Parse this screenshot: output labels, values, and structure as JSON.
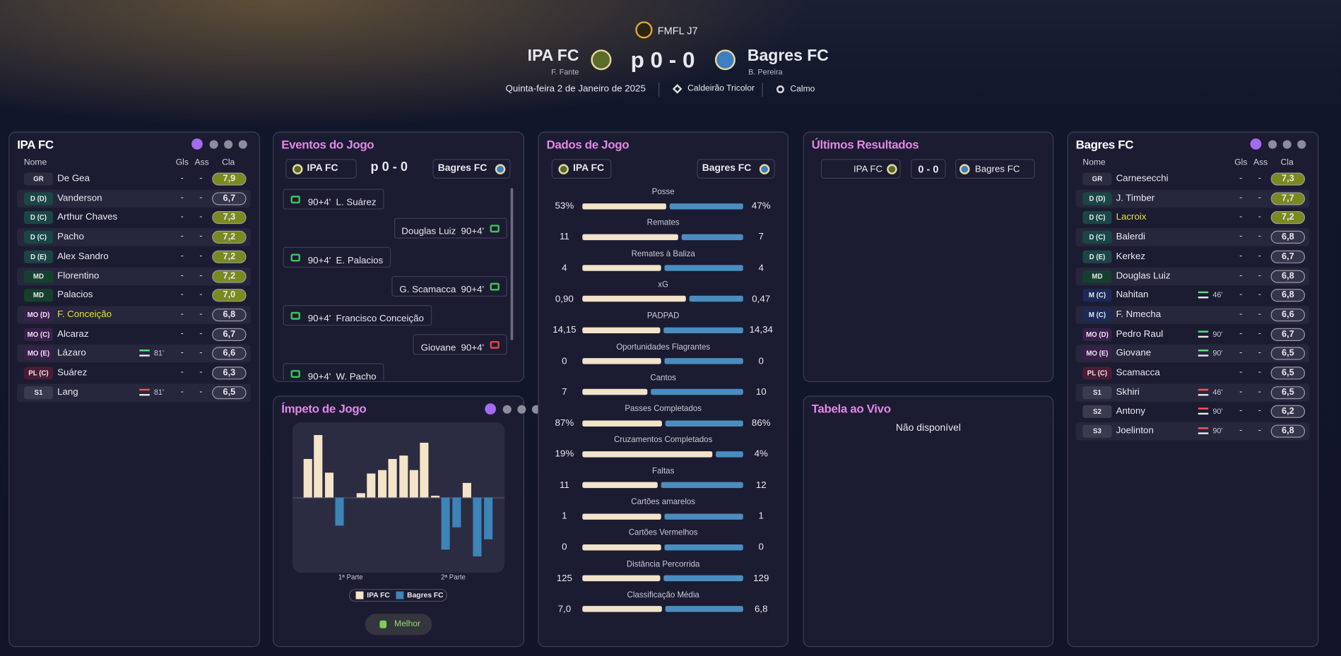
{
  "header": {
    "competition": "FMFL J7",
    "home": {
      "name": "IPA FC",
      "manager": "F. Fante"
    },
    "score": "p 0 - 0",
    "away": {
      "name": "Bagres FC",
      "manager": "B. Pereira"
    },
    "date": "Quinta-feira 2 de Janeiro de 2025",
    "stadium": "Caldeirão Tricolor",
    "weather": "Calmo"
  },
  "home_panel": {
    "title": "IPA FC",
    "columns": [
      "Nome",
      "Gls",
      "Ass",
      "Cla"
    ],
    "players": [
      {
        "pos": "GR",
        "pos_bg": "#2b2c40",
        "name": "De Gea",
        "goals": "-",
        "assists": "-",
        "rating": "7,9",
        "rating_color": "#7a8a1e"
      },
      {
        "pos": "D (D)",
        "pos_bg": "#1b4646",
        "name": "Vanderson",
        "goals": "-",
        "assists": "-",
        "rating": "6,7",
        "rating_color": "#34354a"
      },
      {
        "pos": "D (C)",
        "pos_bg": "#1b4646",
        "name": "Arthur Chaves",
        "goals": "-",
        "assists": "-",
        "rating": "7,3",
        "rating_color": "#7a8a1e"
      },
      {
        "pos": "D (C)",
        "pos_bg": "#1b4646",
        "name": "Pacho",
        "goals": "-",
        "assists": "-",
        "rating": "7,2",
        "rating_color": "#7a8a1e"
      },
      {
        "pos": "D (E)",
        "pos_bg": "#1b4646",
        "name": "Alex Sandro",
        "goals": "-",
        "assists": "-",
        "rating": "7,2",
        "rating_color": "#7a8a1e"
      },
      {
        "pos": "MD",
        "pos_bg": "#173f2e",
        "name": "Florentino",
        "goals": "-",
        "assists": "-",
        "rating": "7,2",
        "rating_color": "#7a8a1e"
      },
      {
        "pos": "MD",
        "pos_bg": "#173f2e",
        "name": "Palacios",
        "goals": "-",
        "assists": "-",
        "rating": "7,0",
        "rating_color": "#7a8a1e"
      },
      {
        "pos": "MO (D)",
        "pos_bg": "#3b1f4b",
        "name": "F. Conceição",
        "name_color": "#e8e03a",
        "goals": "-",
        "assists": "-",
        "rating": "6,8",
        "rating_color": "#34354a"
      },
      {
        "pos": "MO (C)",
        "pos_bg": "#3b1f4b",
        "name": "Alcaraz",
        "goals": "-",
        "assists": "-",
        "rating": "6,7",
        "rating_color": "#34354a"
      },
      {
        "pos": "MO (E)",
        "pos_bg": "#3b1f4b",
        "name": "Lázaro",
        "sub": "81'",
        "sub_color": "#5ee07a",
        "goals": "-",
        "assists": "-",
        "rating": "6,6",
        "rating_color": "#34354a"
      },
      {
        "pos": "PL (C)",
        "pos_bg": "#4a1c33",
        "name": "Suárez",
        "goals": "-",
        "assists": "-",
        "rating": "6,3",
        "rating_color": "#34354a"
      },
      {
        "pos": "S1",
        "pos_bg": "#3a3b4f",
        "name": "Lang",
        "sub": "81'",
        "sub_color": "#f05a5a",
        "goals": "-",
        "assists": "-",
        "rating": "6,5",
        "rating_color": "#34354a"
      }
    ]
  },
  "events": {
    "title": "Eventos do Jogo",
    "home": "IPA FC",
    "score": "p 0 - 0",
    "away": "Bagres FC",
    "items": [
      {
        "side": "home",
        "minute": "90+4'",
        "player": "L. Suárez",
        "icon_color": "#3ec45a"
      },
      {
        "side": "away",
        "minute": "90+4'",
        "player": "Douglas Luiz",
        "icon_color": "#3ec45a"
      },
      {
        "side": "home",
        "minute": "90+4'",
        "player": "E. Palacios",
        "icon_color": "#3ec45a"
      },
      {
        "side": "away",
        "minute": "90+4'",
        "player": "G. Scamacca",
        "icon_color": "#3ec45a"
      },
      {
        "side": "home",
        "minute": "90+4'",
        "player": "Francisco Conceição",
        "icon_color": "#3ec45a"
      },
      {
        "side": "away",
        "minute": "90+4'",
        "player": "Giovane",
        "icon_color": "#e04848"
      },
      {
        "side": "home",
        "minute": "90+4'",
        "player": "W. Pacho",
        "icon_color": "#3ec45a"
      }
    ]
  },
  "momentum": {
    "title": "Ímpeto de Jogo",
    "values": [
      45,
      73,
      29,
      -33,
      0,
      5,
      28,
      32,
      45,
      49,
      32,
      64,
      2,
      -61,
      -35,
      17,
      -69,
      -49
    ],
    "home_color": "#f4e4c8",
    "away_color": "#3d84b8",
    "half_labels": [
      "1ª Parte",
      "2ª Parte"
    ],
    "button": "Melhor"
  },
  "stats": {
    "title": "Dados de Jogo",
    "home": "IPA FC",
    "away": "Bagres FC",
    "home_color": "#f2e3c9",
    "away_color": "#4a8dc0",
    "rows": [
      {
        "label": "Posse",
        "home": {
          "value": 53,
          "label": "53%"
        },
        "away": {
          "value": 47,
          "label": "47%"
        }
      },
      {
        "label": "Remates",
        "home": 11,
        "away": 7
      },
      {
        "label": "Remates à Baliza",
        "home": 4,
        "away": 4
      },
      {
        "label": "xG",
        "home": {
          "value": 0.9,
          "label": "0,90"
        },
        "away": {
          "value": 0.47,
          "label": "0,47"
        }
      },
      {
        "label": "PADPAD",
        "home": {
          "value": 14.15,
          "label": "14,15"
        },
        "away": {
          "value": 14.34,
          "label": "14,34"
        }
      },
      {
        "label": "Oportunidades Flagrantes",
        "home": 0,
        "away": 0
      },
      {
        "label": "Cantos",
        "home": 7,
        "away": 10
      },
      {
        "label": "Passes Completados",
        "home": {
          "value": 87,
          "label": "87%"
        },
        "away": {
          "value": 86,
          "label": "86%"
        }
      },
      {
        "label": "Cruzamentos Completados",
        "home": {
          "value": 19,
          "label": "19%"
        },
        "away": {
          "value": 4,
          "label": "4%"
        }
      },
      {
        "label": "Faltas",
        "home": 11,
        "away": 12
      },
      {
        "label": "Cartões amarelos",
        "home": 1,
        "away": 1
      },
      {
        "label": "Cartões Vermelhos",
        "home": 0,
        "away": 0
      },
      {
        "label": "Distância Percorrida",
        "home": 125,
        "away": 129
      },
      {
        "label": "Classificação Média",
        "home": {
          "value": 7,
          "label": "7,0"
        },
        "away": {
          "value": 6.8,
          "label": "6,8"
        }
      }
    ]
  },
  "results": {
    "title": "Últimos Resultados",
    "home": "IPA FC",
    "score": "0 - 0",
    "away": "Bagres FC"
  },
  "live_table": {
    "title": "Tabela ao Vivo",
    "message": "Não disponível"
  },
  "away_panel": {
    "title": "Bagres FC",
    "columns": [
      "Nome",
      "Gls",
      "Ass",
      "Cla"
    ],
    "players": [
      {
        "pos": "GR",
        "pos_bg": "#2b2c40",
        "name": "Carnesecchi",
        "goals": "-",
        "assists": "-",
        "rating": "7,3",
        "rating_color": "#7a8a1e"
      },
      {
        "pos": "D (D)",
        "pos_bg": "#1b4646",
        "name": "J. Timber",
        "goals": "-",
        "assists": "-",
        "rating": "7,7",
        "rating_color": "#7a8a1e"
      },
      {
        "pos": "D (C)",
        "pos_bg": "#1b4646",
        "name": "Lacroix",
        "name_color": "#e8e03a",
        "goals": "-",
        "assists": "-",
        "rating": "7,2",
        "rating_color": "#7a8a1e"
      },
      {
        "pos": "D (C)",
        "pos_bg": "#1b4646",
        "name": "Balerdi",
        "goals": "-",
        "assists": "-",
        "rating": "6,8",
        "rating_color": "#34354a"
      },
      {
        "pos": "D (E)",
        "pos_bg": "#1b4646",
        "name": "Kerkez",
        "goals": "-",
        "assists": "-",
        "rating": "6,7",
        "rating_color": "#34354a"
      },
      {
        "pos": "MD",
        "pos_bg": "#173f2e",
        "name": "Douglas Luiz",
        "goals": "-",
        "assists": "-",
        "rating": "6,8",
        "rating_color": "#34354a"
      },
      {
        "pos": "M (C)",
        "pos_bg": "#1b2a57",
        "name": "Nahitan",
        "sub": "46'",
        "sub_color": "#5ee07a",
        "goals": "-",
        "assists": "-",
        "rating": "6,8",
        "rating_color": "#34354a"
      },
      {
        "pos": "M (C)",
        "pos_bg": "#1b2a57",
        "name": "F. Nmecha",
        "goals": "-",
        "assists": "-",
        "rating": "6,6",
        "rating_color": "#34354a"
      },
      {
        "pos": "MO (D)",
        "pos_bg": "#3b1f4b",
        "name": "Pedro Raul",
        "sub": "90'",
        "sub_color": "#5ee07a",
        "goals": "-",
        "assists": "-",
        "rating": "6,7",
        "rating_color": "#34354a"
      },
      {
        "pos": "MO (E)",
        "pos_bg": "#3b1f4b",
        "name": "Giovane",
        "sub": "90'",
        "sub_color": "#5ee07a",
        "goals": "-",
        "assists": "-",
        "rating": "6,5",
        "rating_color": "#34354a"
      },
      {
        "pos": "PL (C)",
        "pos_bg": "#4a1c33",
        "name": "Scamacca",
        "goals": "-",
        "assists": "-",
        "rating": "6,5",
        "rating_color": "#34354a"
      },
      {
        "pos": "S1",
        "pos_bg": "#3a3b4f",
        "name": "Skhiri",
        "sub": "46'",
        "sub_color": "#f05a5a",
        "goals": "-",
        "assists": "-",
        "rating": "6,5",
        "rating_color": "#34354a"
      },
      {
        "pos": "S2",
        "pos_bg": "#3a3b4f",
        "name": "Antony",
        "sub": "90'",
        "sub_color": "#f05a5a",
        "goals": "-",
        "assists": "-",
        "rating": "6,2",
        "rating_color": "#34354a"
      },
      {
        "pos": "S3",
        "pos_bg": "#3a3b4f",
        "name": "Joelinton",
        "sub": "90'",
        "sub_color": "#f05a5a",
        "goals": "-",
        "assists": "-",
        "rating": "6,8",
        "rating_color": "#34354a"
      }
    ]
  }
}
